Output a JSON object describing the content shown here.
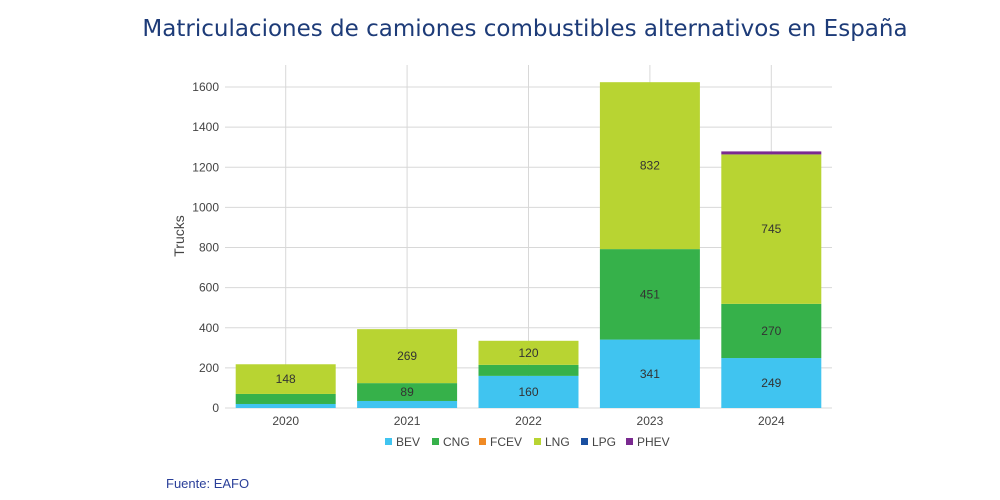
{
  "title": "Matriculaciones de camiones combustibles alternativos en España",
  "source": "Fuente: EAFO",
  "chart_data": {
    "type": "bar",
    "stacked": true,
    "title": "Matriculaciones de camiones combustibles alternativos en España",
    "xlabel": "",
    "ylabel": "Trucks",
    "ylim": [
      0,
      1600
    ],
    "yticks": [
      0,
      200,
      400,
      600,
      800,
      1000,
      1200,
      1400,
      1600
    ],
    "grid": true,
    "legend": "bottom",
    "categories": [
      "2020",
      "2021",
      "2022",
      "2023",
      "2024"
    ],
    "series": [
      {
        "name": "BEV",
        "color": "#40c4f0",
        "values": [
          20,
          35,
          160,
          341,
          249
        ],
        "labels": [
          null,
          null,
          "160",
          "341",
          "249"
        ]
      },
      {
        "name": "CNG",
        "color": "#36b14a",
        "values": [
          50,
          89,
          55,
          451,
          270
        ],
        "labels": [
          null,
          "89",
          null,
          "451",
          "270"
        ]
      },
      {
        "name": "FCEV",
        "color": "#f08a24",
        "values": [
          0,
          0,
          0,
          0,
          0
        ],
        "labels": [
          null,
          null,
          null,
          null,
          null
        ]
      },
      {
        "name": "LNG",
        "color": "#b8d432",
        "values": [
          148,
          269,
          120,
          832,
          745
        ],
        "labels": [
          "148",
          "269",
          "120",
          "832",
          "745"
        ]
      },
      {
        "name": "LPG",
        "color": "#1a4fa0",
        "values": [
          0,
          0,
          0,
          0,
          0
        ],
        "labels": [
          null,
          null,
          null,
          null,
          null
        ]
      },
      {
        "name": "PHEV",
        "color": "#7a2a90",
        "values": [
          0,
          0,
          0,
          0,
          15
        ],
        "labels": [
          null,
          null,
          null,
          null,
          null
        ]
      }
    ]
  }
}
